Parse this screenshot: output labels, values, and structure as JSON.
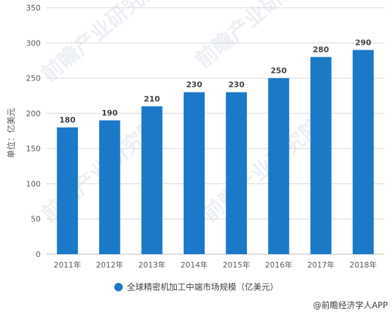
{
  "chart_data": {
    "type": "bar",
    "categories": [
      "2011年",
      "2012年",
      "2013年",
      "2014年",
      "2015年",
      "2016年",
      "2017年",
      "2018年"
    ],
    "series": [
      {
        "name": "全球精密机加工中端市场规模（亿美元）",
        "values": [
          180,
          190,
          210,
          230,
          230,
          250,
          280,
          290
        ]
      }
    ],
    "ylabel": "单位：亿美元",
    "ylim": [
      0,
      350
    ],
    "yticks": [
      0,
      50,
      100,
      150,
      200,
      250,
      300,
      350
    ],
    "grid": true,
    "legend_position": "bottom",
    "bar_color": "#1b79c8",
    "grid_color": "#d9d9d9"
  },
  "watermark": "前瞻产业研究院",
  "source": "@前瞻经济学人APP"
}
